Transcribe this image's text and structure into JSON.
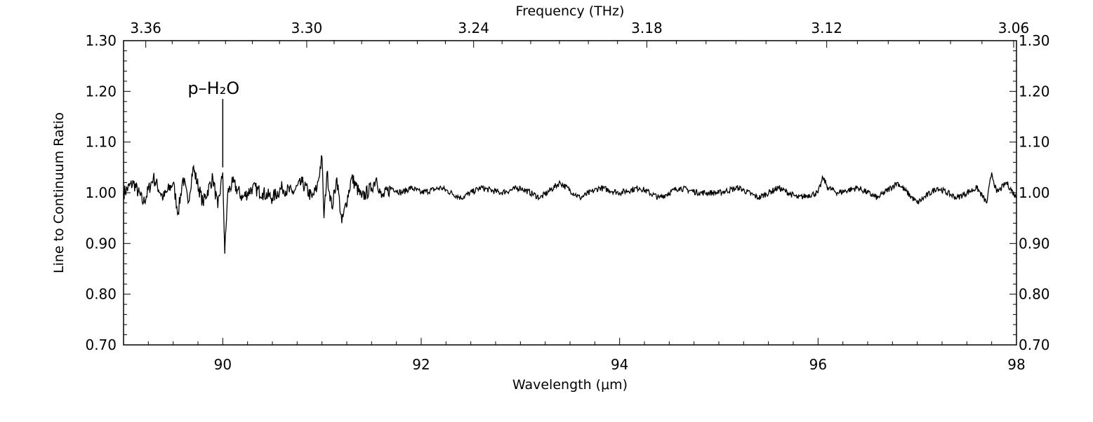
{
  "chart_data": {
    "type": "line",
    "xlabel": "Wavelength (μm)",
    "x2label": "Frequency (THz)",
    "ylabel": "Line to Continuum Ratio",
    "xlim": [
      89,
      98
    ],
    "ylim": [
      0.7,
      1.3
    ],
    "x_ticks": [
      "90",
      "92",
      "94",
      "96",
      "98"
    ],
    "x_tick_values": [
      90,
      92,
      94,
      96,
      98
    ],
    "x2_ticks": [
      "3.36",
      "3.30",
      "3.24",
      "3.18",
      "3.12",
      "3.06"
    ],
    "x2_tick_values": [
      3.36,
      3.3,
      3.24,
      3.18,
      3.12,
      3.06
    ],
    "y_ticks": [
      "0.70",
      "0.80",
      "0.90",
      "1.00",
      "1.10",
      "1.20",
      "1.30"
    ],
    "y_tick_values": [
      0.7,
      0.8,
      0.9,
      1.0,
      1.1,
      1.2,
      1.3
    ],
    "grid": false,
    "annotations": [
      {
        "text": "p–H₂O",
        "x": 90.0
      }
    ],
    "series": [
      {
        "color": "#000000",
        "x": [
          89.0,
          89.1,
          89.2,
          89.3,
          89.4,
          89.5,
          89.55,
          89.6,
          89.65,
          89.7,
          89.8,
          89.9,
          89.95,
          90.0,
          90.02,
          90.05,
          90.1,
          90.2,
          90.3,
          90.4,
          90.5,
          90.6,
          90.7,
          90.8,
          90.9,
          90.95,
          91.0,
          91.02,
          91.05,
          91.1,
          91.15,
          91.2,
          91.3,
          91.4,
          91.5,
          91.55,
          91.6,
          91.7,
          91.8,
          91.9,
          92.0,
          92.2,
          92.4,
          92.6,
          92.8,
          93.0,
          93.2,
          93.4,
          93.6,
          93.8,
          94.0,
          94.2,
          94.4,
          94.6,
          94.8,
          95.0,
          95.2,
          95.4,
          95.6,
          95.8,
          96.0,
          96.05,
          96.1,
          96.2,
          96.4,
          96.6,
          96.8,
          97.0,
          97.2,
          97.4,
          97.6,
          97.7,
          97.75,
          97.8,
          97.9,
          98.0
        ],
        "y": [
          1.0,
          1.02,
          0.98,
          1.03,
          0.99,
          1.02,
          0.96,
          1.03,
          0.98,
          1.05,
          0.98,
          1.03,
          0.97,
          1.04,
          0.88,
          1.0,
          1.02,
          0.99,
          1.01,
          1.0,
          0.99,
          1.01,
          1.0,
          1.02,
          0.99,
          1.01,
          1.07,
          0.95,
          1.04,
          0.97,
          1.03,
          0.94,
          1.03,
          0.99,
          1.01,
          1.03,
          0.99,
          1.01,
          1.0,
          1.01,
          1.0,
          1.01,
          0.99,
          1.01,
          1.0,
          1.01,
          0.99,
          1.02,
          0.99,
          1.01,
          1.0,
          1.01,
          0.99,
          1.01,
          1.0,
          1.0,
          1.01,
          0.99,
          1.01,
          0.99,
          1.0,
          1.03,
          1.01,
          1.0,
          1.01,
          0.99,
          1.02,
          0.98,
          1.01,
          0.99,
          1.01,
          0.98,
          1.04,
          1.0,
          1.02,
          0.99
        ]
      }
    ]
  }
}
